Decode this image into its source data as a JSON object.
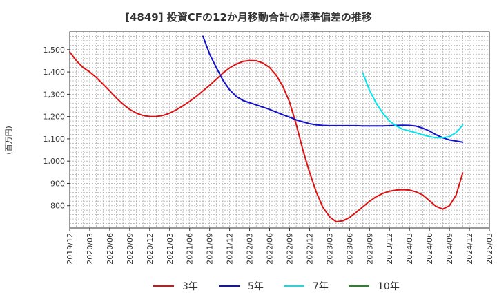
{
  "chart_data": {
    "type": "line",
    "title": "[4849]  投資CFの12か月移動合計の標準偏差の推移",
    "ylabel": "(百万円)",
    "xlabel": "",
    "ylim": [
      700,
      1580
    ],
    "yticks": [
      800,
      900,
      1000,
      1100,
      1200,
      1300,
      1400,
      1500
    ],
    "ytick_labels": [
      "800",
      "900",
      "1,000",
      "1,100",
      "1,200",
      "1,300",
      "1,400",
      "1,500"
    ],
    "xlim": [
      "2019-12",
      "2025-03"
    ],
    "xtick_labels": [
      "2019/12",
      "2020/03",
      "2020/06",
      "2020/09",
      "2020/12",
      "2021/03",
      "2021/06",
      "2021/09",
      "2021/12",
      "2022/03",
      "2022/06",
      "2022/09",
      "2022/12",
      "2023/03",
      "2023/06",
      "2023/09",
      "2023/12",
      "2024/03",
      "2024/06",
      "2024/09",
      "2024/12",
      "2025/03"
    ],
    "grid": true,
    "legend_position": "bottom",
    "series": [
      {
        "name": "3年",
        "color": "#dd1111",
        "points": [
          [
            "2019-12",
            1490
          ],
          [
            "2020-01",
            1450
          ],
          [
            "2020-02",
            1420
          ],
          [
            "2020-03",
            1400
          ],
          [
            "2020-04",
            1375
          ],
          [
            "2020-05",
            1345
          ],
          [
            "2020-06",
            1315
          ],
          [
            "2020-07",
            1283
          ],
          [
            "2020-08",
            1255
          ],
          [
            "2020-09",
            1232
          ],
          [
            "2020-10",
            1215
          ],
          [
            "2020-11",
            1205
          ],
          [
            "2020-12",
            1200
          ],
          [
            "2021-01",
            1200
          ],
          [
            "2021-02",
            1205
          ],
          [
            "2021-03",
            1215
          ],
          [
            "2021-04",
            1230
          ],
          [
            "2021-05",
            1248
          ],
          [
            "2021-06",
            1268
          ],
          [
            "2021-07",
            1290
          ],
          [
            "2021-08",
            1315
          ],
          [
            "2021-09",
            1340
          ],
          [
            "2021-10",
            1367
          ],
          [
            "2021-11",
            1395
          ],
          [
            "2021-12",
            1418
          ],
          [
            "2022-01",
            1435
          ],
          [
            "2022-02",
            1447
          ],
          [
            "2022-03",
            1451
          ],
          [
            "2022-04",
            1450
          ],
          [
            "2022-05",
            1440
          ],
          [
            "2022-06",
            1420
          ],
          [
            "2022-07",
            1385
          ],
          [
            "2022-08",
            1335
          ],
          [
            "2022-09",
            1265
          ],
          [
            "2022-10",
            1165
          ],
          [
            "2022-11",
            1050
          ],
          [
            "2022-12",
            950
          ],
          [
            "2023-01",
            862
          ],
          [
            "2023-02",
            793
          ],
          [
            "2023-03",
            750
          ],
          [
            "2023-04",
            728
          ],
          [
            "2023-05",
            732
          ],
          [
            "2023-06",
            747
          ],
          [
            "2023-07",
            770
          ],
          [
            "2023-08",
            795
          ],
          [
            "2023-09",
            820
          ],
          [
            "2023-10",
            840
          ],
          [
            "2023-11",
            855
          ],
          [
            "2023-12",
            865
          ],
          [
            "2024-01",
            870
          ],
          [
            "2024-02",
            872
          ],
          [
            "2024-03",
            870
          ],
          [
            "2024-04",
            862
          ],
          [
            "2024-05",
            848
          ],
          [
            "2024-06",
            822
          ],
          [
            "2024-07",
            797
          ],
          [
            "2024-08",
            785
          ],
          [
            "2024-09",
            800
          ],
          [
            "2024-10",
            848
          ],
          [
            "2024-11",
            947
          ]
        ]
      },
      {
        "name": "5年",
        "color": "#1111cc",
        "points": [
          [
            "2021-08",
            1560
          ],
          [
            "2021-09",
            1480
          ],
          [
            "2021-10",
            1420
          ],
          [
            "2021-11",
            1363
          ],
          [
            "2021-12",
            1320
          ],
          [
            "2022-01",
            1290
          ],
          [
            "2022-02",
            1272
          ],
          [
            "2022-03",
            1262
          ],
          [
            "2022-04",
            1252
          ],
          [
            "2022-05",
            1242
          ],
          [
            "2022-06",
            1232
          ],
          [
            "2022-07",
            1220
          ],
          [
            "2022-08",
            1208
          ],
          [
            "2022-09",
            1197
          ],
          [
            "2022-10",
            1185
          ],
          [
            "2022-11",
            1176
          ],
          [
            "2022-12",
            1168
          ],
          [
            "2023-01",
            1163
          ],
          [
            "2023-02",
            1160
          ],
          [
            "2023-03",
            1159
          ],
          [
            "2023-04",
            1159
          ],
          [
            "2023-05",
            1159
          ],
          [
            "2023-06",
            1159
          ],
          [
            "2023-07",
            1159
          ],
          [
            "2023-08",
            1158
          ],
          [
            "2023-09",
            1158
          ],
          [
            "2023-10",
            1158
          ],
          [
            "2023-11",
            1158
          ],
          [
            "2023-12",
            1159
          ],
          [
            "2024-01",
            1160
          ],
          [
            "2024-02",
            1161
          ],
          [
            "2024-03",
            1160
          ],
          [
            "2024-04",
            1157
          ],
          [
            "2024-05",
            1148
          ],
          [
            "2024-06",
            1135
          ],
          [
            "2024-07",
            1118
          ],
          [
            "2024-08",
            1105
          ],
          [
            "2024-09",
            1095
          ],
          [
            "2024-10",
            1090
          ],
          [
            "2024-11",
            1085
          ]
        ]
      },
      {
        "name": "7年",
        "color": "#00e5ee",
        "points": [
          [
            "2023-08",
            1395
          ],
          [
            "2023-09",
            1318
          ],
          [
            "2023-10",
            1260
          ],
          [
            "2023-11",
            1215
          ],
          [
            "2023-12",
            1180
          ],
          [
            "2024-01",
            1158
          ],
          [
            "2024-02",
            1143
          ],
          [
            "2024-03",
            1135
          ],
          [
            "2024-04",
            1127
          ],
          [
            "2024-05",
            1118
          ],
          [
            "2024-06",
            1110
          ],
          [
            "2024-07",
            1105
          ],
          [
            "2024-08",
            1105
          ],
          [
            "2024-09",
            1110
          ],
          [
            "2024-10",
            1128
          ],
          [
            "2024-11",
            1162
          ]
        ]
      },
      {
        "name": "10年",
        "color": "#228822",
        "points": []
      }
    ]
  }
}
